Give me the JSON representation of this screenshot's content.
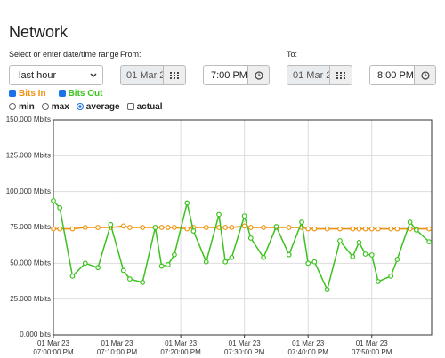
{
  "page": {
    "title": "Network",
    "range_label": "Select or enter date/time range",
    "range_select": "last hour",
    "from": {
      "label": "From:",
      "date": "01 Mar 2",
      "time": "7:00 PM"
    },
    "to": {
      "label": "To:",
      "date": "01 Mar 2",
      "time": "8:00 PM"
    },
    "aggregation": {
      "options": [
        "min",
        "max",
        "average"
      ],
      "selected": "average"
    },
    "actual_label": "actual"
  },
  "chart_data": {
    "type": "line",
    "x": [
      0,
      1,
      3,
      5,
      7,
      9,
      11,
      12,
      14,
      16,
      17,
      18,
      19,
      21,
      22,
      24,
      26,
      27,
      28,
      30,
      31,
      33,
      35,
      37,
      39,
      40,
      41,
      43,
      45,
      47,
      48,
      49,
      50,
      51,
      53,
      54,
      56,
      57,
      59
    ],
    "series": [
      {
        "name": "Bits In",
        "color": "#f0920e",
        "values": [
          74,
          74,
          74,
          75,
          75,
          75,
          76,
          75,
          75,
          75,
          75,
          75,
          75,
          74,
          75,
          75,
          75,
          75,
          75,
          76,
          75,
          75,
          75,
          75,
          75,
          74,
          74,
          74,
          74,
          74,
          74,
          74,
          74,
          74,
          74,
          74,
          74,
          74,
          74
        ]
      },
      {
        "name": "Bits Out",
        "color": "#3cc21e",
        "values": [
          93.6,
          88.7,
          41,
          50,
          47,
          77,
          45,
          39,
          36.6,
          75,
          48,
          49,
          56,
          92,
          72.5,
          51,
          84,
          51,
          54,
          83,
          67.6,
          54,
          75.6,
          56,
          78.7,
          50,
          51,
          31.6,
          65.7,
          54.6,
          64.5,
          56.4,
          55.8,
          37.2,
          41,
          52.7,
          78.7,
          73.2,
          65
        ]
      }
    ],
    "xlim": [
      0,
      59.4
    ],
    "xticks": [
      {
        "value": 0,
        "date": "01 Mar 23",
        "label": "07:00:00 PM"
      },
      {
        "value": 10,
        "date": "01 Mar 23",
        "label": "07:10:00 PM"
      },
      {
        "value": 20,
        "date": "01 Mar 23",
        "label": "07:20:00 PM"
      },
      {
        "value": 30,
        "date": "01 Mar 23",
        "label": "07:30:00 PM"
      },
      {
        "value": 40,
        "date": "01 Mar 23",
        "label": "07:40:00 PM"
      },
      {
        "value": 50,
        "date": "01 Mar 23",
        "label": "07:50:00 PM"
      }
    ],
    "ylim": [
      0,
      150
    ],
    "yticks": [
      {
        "value": 0,
        "label": "0.000 bits"
      },
      {
        "value": 25,
        "label": "25.000 Mbits"
      },
      {
        "value": 50,
        "label": "50.000 Mbits"
      },
      {
        "value": 75,
        "label": "75.000 Mbits"
      },
      {
        "value": 100,
        "label": "100.000 Mbits"
      },
      {
        "value": 125,
        "label": "125.000 Mbits"
      },
      {
        "value": 150,
        "label": "150.000 Mbits"
      }
    ],
    "grid": true
  }
}
